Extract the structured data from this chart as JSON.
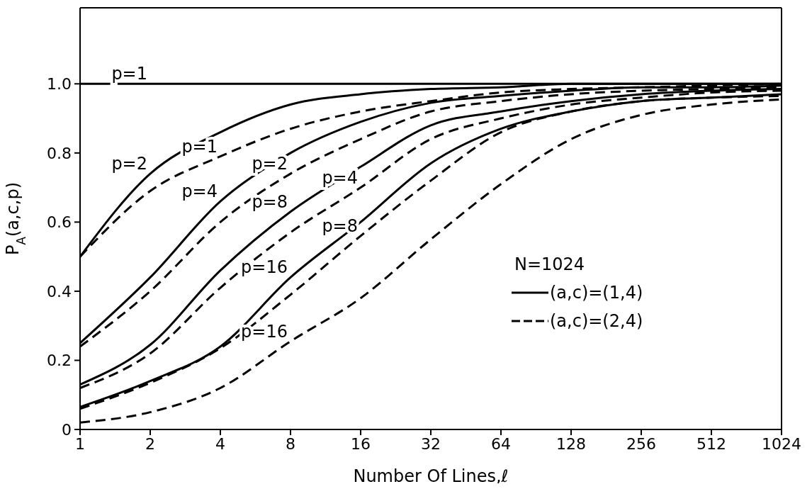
{
  "chart_data": {
    "type": "line",
    "xlabel": "Number Of Lines,ℓ",
    "ylabel": "P$_{A}$(a,c,p)",
    "legend_title": "N=1024",
    "legend": "right",
    "x": [
      1,
      2,
      4,
      8,
      16,
      32,
      64,
      128,
      256,
      512,
      1024
    ],
    "log": "x",
    "xlim": [
      1,
      1024
    ],
    "xticks": [
      1,
      2,
      4,
      8,
      16,
      32,
      64,
      128,
      256,
      512,
      1024
    ],
    "ylim": [
      0,
      1.22
    ],
    "yticks": [
      0,
      0.2,
      0.4,
      0.6,
      0.8,
      {
        "value": 1,
        "label": "1.0"
      }
    ],
    "grid": false,
    "marker": "none",
    "series": [
      {
        "name": "(a,c)=(1,4)",
        "color": "#000000",
        "line_style": "solid",
        "values": [
          1,
          1,
          1,
          1,
          1,
          1,
          1,
          1,
          1,
          1,
          1
        ]
      },
      {
        "color": "#000000",
        "line_style": "solid",
        "values": [
          0.5,
          0.74,
          0.86,
          0.94,
          0.97,
          0.985,
          0.99,
          1,
          1,
          1,
          1
        ]
      },
      {
        "name": "(a,c)=(2,4)",
        "color": "#000000",
        "line_style": "dashed",
        "values": [
          0.5,
          0.69,
          0.79,
          0.87,
          0.92,
          0.95,
          0.975,
          0.985,
          0.99,
          0.995,
          1
        ]
      },
      {
        "color": "#000000",
        "line_style": "solid",
        "values": [
          0.25,
          0.44,
          0.66,
          0.8,
          0.89,
          0.945,
          0.965,
          0.98,
          0.99,
          0.99,
          0.995
        ]
      },
      {
        "color": "#000000",
        "line_style": "dashed",
        "values": [
          0.24,
          0.4,
          0.6,
          0.74,
          0.84,
          0.92,
          0.95,
          0.97,
          0.98,
          0.985,
          0.99
        ]
      },
      {
        "color": "#000000",
        "line_style": "solid",
        "values": [
          0.13,
          0.245,
          0.46,
          0.63,
          0.76,
          0.88,
          0.92,
          0.95,
          0.97,
          0.98,
          0.985
        ]
      },
      {
        "color": "#000000",
        "line_style": "dashed",
        "values": [
          0.12,
          0.22,
          0.41,
          0.57,
          0.7,
          0.84,
          0.9,
          0.94,
          0.96,
          0.975,
          0.98
        ]
      },
      {
        "color": "#000000",
        "line_style": "solid",
        "values": [
          0.065,
          0.14,
          0.24,
          0.44,
          0.6,
          0.77,
          0.87,
          0.92,
          0.95,
          0.96,
          0.97
        ]
      },
      {
        "color": "#000000",
        "line_style": "dashed",
        "values": [
          0.06,
          0.135,
          0.235,
          0.39,
          0.56,
          0.72,
          0.86,
          0.92,
          0.95,
          0.96,
          0.965
        ]
      },
      {
        "color": "#000000",
        "line_style": "dashed",
        "values": [
          0.02,
          0.05,
          0.12,
          0.255,
          0.38,
          0.55,
          0.71,
          0.84,
          0.91,
          0.94,
          0.955
        ]
      }
    ],
    "annotations": [
      {
        "text": "p=1",
        "x": 2,
        "y": 1
      },
      {
        "text": "p=2",
        "x": 2,
        "y": 0.74
      },
      {
        "text": "p=1",
        "x": 4,
        "y": 0.79
      },
      {
        "text": "p=4",
        "x": 4,
        "y": 0.66
      },
      {
        "text": "p=2",
        "x": 8,
        "y": 0.74
      },
      {
        "text": "p=8",
        "x": 8,
        "y": 0.63
      },
      {
        "text": "p=4",
        "x": 16,
        "y": 0.7
      },
      {
        "text": "p=16",
        "x": 8,
        "y": 0.44
      },
      {
        "text": "p=8",
        "x": 16,
        "y": 0.56
      },
      {
        "text": "p=16",
        "x": 8,
        "y": 0.255
      }
    ]
  }
}
